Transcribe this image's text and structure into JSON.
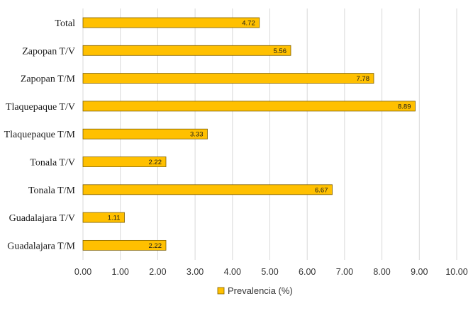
{
  "chart_data": {
    "type": "bar",
    "orientation": "horizontal",
    "title": "",
    "xlabel": "",
    "ylabel": "",
    "categories": [
      "Total",
      "Zapopan T/V",
      "Zapopan T/M",
      "Tlaquepaque T/V",
      "Tlaquepaque T/M",
      "Tonala T/V",
      "Tonala T/M",
      "Guadalajara T/V",
      "Guadalajara T/M"
    ],
    "series": [
      {
        "name": "Prevalencia (%)",
        "values": [
          4.72,
          5.56,
          7.78,
          8.89,
          3.33,
          2.22,
          6.67,
          1.11,
          2.22
        ],
        "data_labels": [
          "4.72",
          "5.56",
          "7.78",
          "8.89",
          "3.33",
          "2.22",
          "6.67",
          "1.11",
          "2.22"
        ],
        "color": "#FFC000",
        "border_color": "#7F6000"
      }
    ],
    "xlim": [
      0,
      10
    ],
    "x_ticks": [
      "0.00",
      "1.00",
      "2.00",
      "3.00",
      "4.00",
      "5.00",
      "6.00",
      "7.00",
      "8.00",
      "9.00",
      "10.00"
    ],
    "grid": "vertical",
    "grid_color": "#d9d9d9",
    "legend_position": "bottom"
  }
}
